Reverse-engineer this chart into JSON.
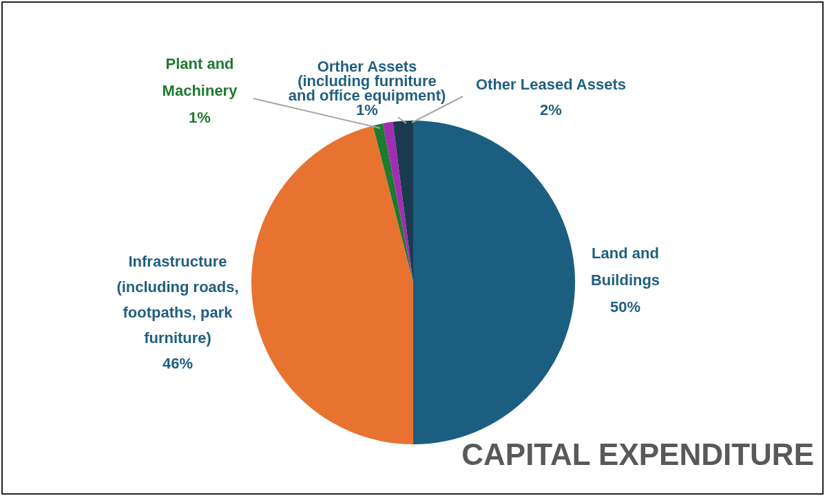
{
  "chart_data": {
    "type": "pie",
    "title": "CAPITAL EXPENDITURE",
    "categories": [
      "Land and Buildings",
      "Infrastructure (including roads, footpaths, park furniture)",
      "Plant and Machinery",
      "Orther Assets (including furniture and office equipment)",
      "Other Leased Assets"
    ],
    "values": [
      50,
      46,
      1,
      1,
      2
    ],
    "colors": [
      "#1b5e80",
      "#e87331",
      "#1e7a2e",
      "#a12db3",
      "#1a3a4f"
    ],
    "value_labels": [
      "50%",
      "46%",
      "1%",
      "1%",
      "2%"
    ]
  }
}
